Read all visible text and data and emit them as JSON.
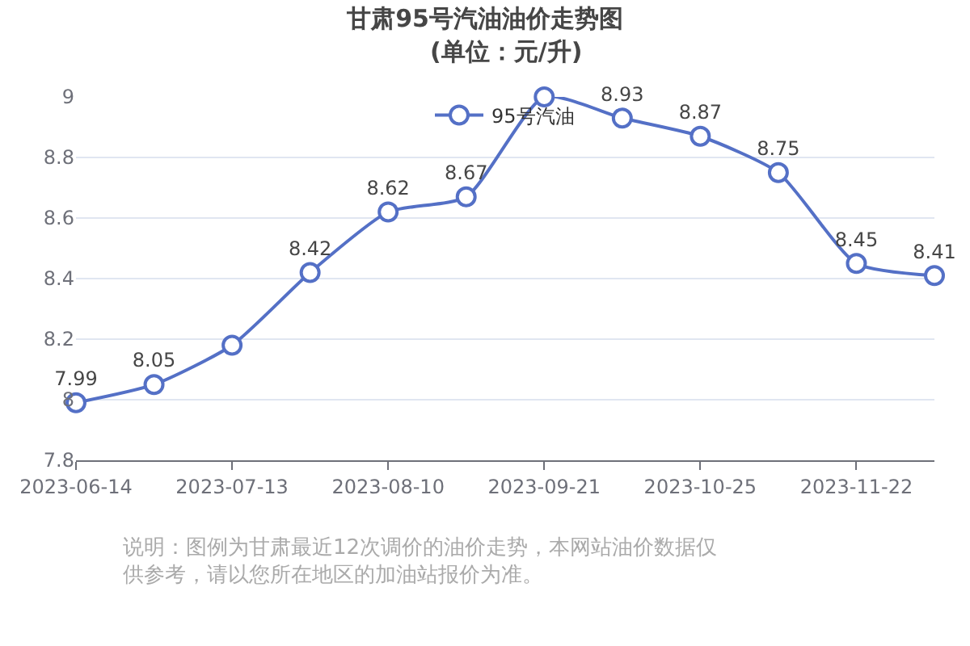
{
  "chart_data": {
    "type": "line",
    "title": "甘肃95号汽油油价走势图",
    "subtitle": "(单位：元/升)",
    "annotations": [
      "说明：图例为甘肃最近12次调价的油价走势，本网站油价数据仅供参考，请以您所在地区的加油站报价为准。"
    ],
    "categories": [
      "2023-06-14",
      null,
      "2023-07-13",
      null,
      "2023-08-10",
      null,
      "2023-09-21",
      null,
      "2023-10-25",
      null,
      "2023-11-22",
      null
    ],
    "series": [
      {
        "name": "95号汽油",
        "color": "#5470c6",
        "values": [
          7.99,
          8.05,
          8.18,
          8.42,
          8.62,
          8.67,
          9.0,
          8.93,
          8.87,
          8.75,
          8.45,
          8.41
        ],
        "value_labels": [
          "7.99",
          "8.05",
          null,
          "8.42",
          "8.62",
          "8.67",
          null,
          "8.93",
          "8.87",
          "8.75",
          "8.45",
          "8.41"
        ]
      }
    ],
    "ylim": [
      7.8,
      9
    ],
    "yticks": [
      7.8,
      8,
      8.2,
      8.4,
      8.6,
      8.8,
      9
    ],
    "grid": "y",
    "legend": "top",
    "marker": "circle",
    "line_style": "solid"
  }
}
